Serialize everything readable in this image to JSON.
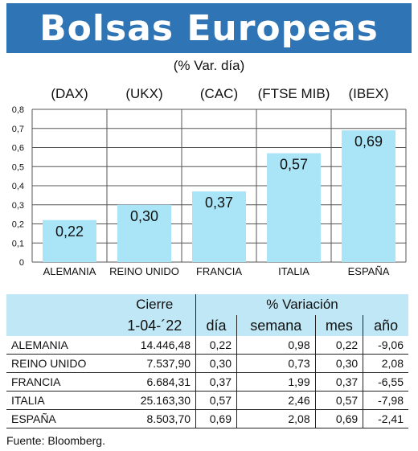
{
  "title": "Bolsas Europeas",
  "subtitle": "(% Var. día)",
  "chart_data": {
    "type": "bar",
    "title": "Bolsas Europeas",
    "subtitle": "(% Var. día)",
    "index_labels": [
      "(DAX)",
      "(UKX)",
      "(CAC)",
      "(FTSE MIB)",
      "(IBEX)"
    ],
    "categories": [
      "ALEMANIA",
      "REINO UNIDO",
      "FRANCIA",
      "ITALIA",
      "ESPAÑA"
    ],
    "values": [
      0.22,
      0.3,
      0.37,
      0.57,
      0.69
    ],
    "value_labels": [
      "0,22",
      "0,30",
      "0,37",
      "0,57",
      "0,69"
    ],
    "yticks": [
      "0",
      "0,1",
      "0,2",
      "0,3",
      "0,4",
      "0,5",
      "0,6",
      "0,7",
      "0,8"
    ],
    "ylim": [
      0,
      0.8
    ],
    "grid": true,
    "bar_color": "#a9e4f7"
  },
  "table": {
    "header1": [
      "Cierre",
      "% Variación"
    ],
    "header2": [
      "1-04-´22",
      "día",
      "semana",
      "mes",
      "año"
    ],
    "rows": [
      [
        "ALEMANIA",
        "14.446,48",
        "0,22",
        "0,98",
        "0,22",
        "-9,06"
      ],
      [
        "REINO UNIDO",
        "7.537,90",
        "0,30",
        "0,73",
        "0,30",
        "2,08"
      ],
      [
        "FRANCIA",
        "6.684,31",
        "0,37",
        "1,99",
        "0,37",
        "-6,55"
      ],
      [
        "ITALIA",
        "25.163,30",
        "0,57",
        "2,46",
        "0,57",
        "-7,98"
      ],
      [
        "ESPAÑA",
        "8.503,70",
        "0,69",
        "2,08",
        "0,69",
        "-2,41"
      ]
    ]
  },
  "source": "Fuente: Bloomberg."
}
